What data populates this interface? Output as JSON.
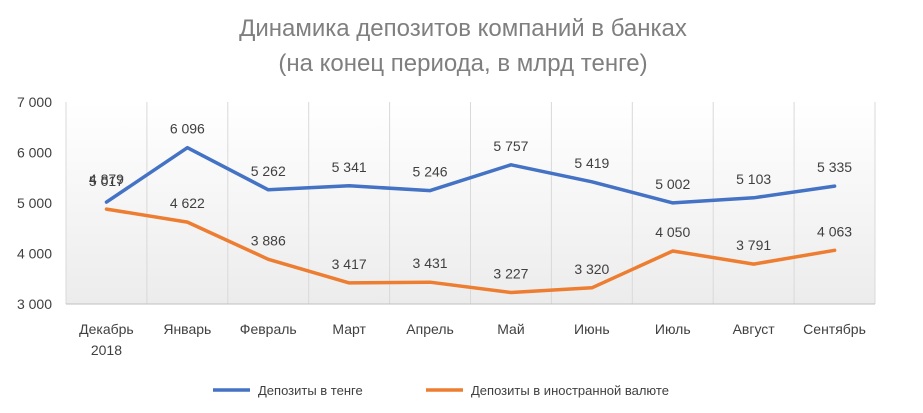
{
  "chart_data": {
    "type": "line",
    "title_lines": [
      "Динамика депозитов компаний в банках",
      "(на конец периода, в млрд тенге)"
    ],
    "categories": [
      [
        "Декабрь",
        "2018"
      ],
      [
        "Январь"
      ],
      [
        "Февраль"
      ],
      [
        "Март"
      ],
      [
        "Апрель"
      ],
      [
        "Май"
      ],
      [
        "Июнь"
      ],
      [
        "Июль"
      ],
      [
        "Август"
      ],
      [
        "Сентябрь"
      ]
    ],
    "series": [
      {
        "name": "Депозиты в тенге",
        "color": "#4472c4",
        "values": [
          5017,
          6096,
          5262,
          5341,
          5246,
          5757,
          5419,
          5002,
          5103,
          5335
        ],
        "labels": [
          "5 017",
          "6 096",
          "5 262",
          "5 341",
          "5 246",
          "5 757",
          "5 419",
          "5 002",
          "5 103",
          "5 335"
        ]
      },
      {
        "name": "Депозиты в иностранной валюте",
        "color": "#ed7d31",
        "values": [
          4879,
          4622,
          3886,
          3417,
          3431,
          3227,
          3320,
          4050,
          3791,
          4063
        ],
        "labels": [
          "4 879",
          "4 622",
          "3 886",
          "3 417",
          "3 431",
          "3 227",
          "3 320",
          "4 050",
          "3 791",
          "4 063"
        ]
      }
    ],
    "ylim": [
      3000,
      7000
    ],
    "yticks": [
      3000,
      4000,
      5000,
      6000,
      7000
    ],
    "ytick_labels": [
      "3 000",
      "4 000",
      "5 000",
      "6 000",
      "7 000"
    ],
    "grid": "vertical lines between categories",
    "legend_position": "bottom"
  }
}
